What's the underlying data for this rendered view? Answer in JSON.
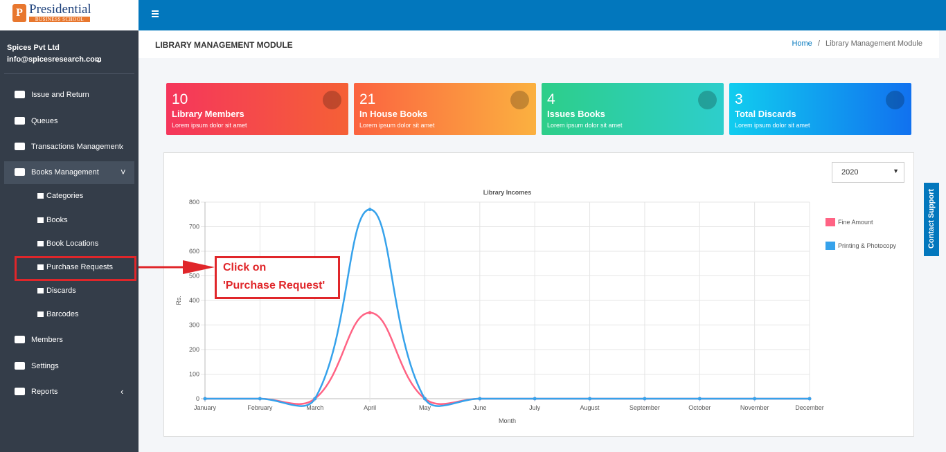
{
  "logo": {
    "name": "Presidential",
    "subtitle": "BUSINESS SCHOOL"
  },
  "user": {
    "company": "Spices Pvt Ltd",
    "email": "info@spicesresearch.com"
  },
  "menu": [
    {
      "label": "Issue and Return"
    },
    {
      "label": "Queues"
    },
    {
      "label": "Transactions Management"
    },
    {
      "label": "Books Management",
      "children": [
        "Categories",
        "Books",
        "Book Locations",
        "Purchase Requests",
        "Discards",
        "Barcodes"
      ]
    },
    {
      "label": "Members"
    },
    {
      "label": "Settings"
    },
    {
      "label": "Reports"
    }
  ],
  "header": {
    "title": "LIBRARY MANAGEMENT MODULE",
    "breadcrumb": [
      "Home",
      "Library Management Module"
    ]
  },
  "cards": [
    {
      "count": 10,
      "title": "Library Members",
      "text": "Lorem ipsum dolor sit amet"
    },
    {
      "count": 21,
      "title": "In House Books",
      "text": "Lorem ipsum dolor sit amet"
    },
    {
      "count": 4,
      "title": "Issues Books",
      "text": "Lorem ipsum dolor sit amet"
    },
    {
      "count": 3,
      "title": "Total Discards",
      "text": "Lorem ipsum dolor sit amet"
    }
  ],
  "year_filter": "2020",
  "chart_data": {
    "type": "line",
    "title": "Library Incomes",
    "x_label": "Month",
    "y_label": "Rs.",
    "categories": [
      "January",
      "February",
      "March",
      "April",
      "May",
      "June",
      "July",
      "August",
      "September",
      "October",
      "November",
      "December"
    ],
    "series": [
      {
        "name": "Fine Amount",
        "color": "#ff6384",
        "values": [
          0,
          0,
          0,
          350,
          0,
          0,
          0,
          0,
          0,
          0,
          0,
          0
        ]
      },
      {
        "name": "Printing & Photocopy",
        "color": "#36a2eb",
        "values": [
          0,
          0,
          0,
          770,
          0,
          0,
          0,
          0,
          0,
          0,
          0,
          0
        ]
      }
    ],
    "ylim": [
      0,
      800
    ],
    "yticks": [
      0,
      100,
      200,
      300,
      400,
      500,
      600,
      700,
      800
    ],
    "grid": true,
    "legend": "right"
  },
  "annotation": {
    "lines": [
      "Click on",
      "'Purchase Request'"
    ]
  },
  "contact_support": "Contact Support"
}
